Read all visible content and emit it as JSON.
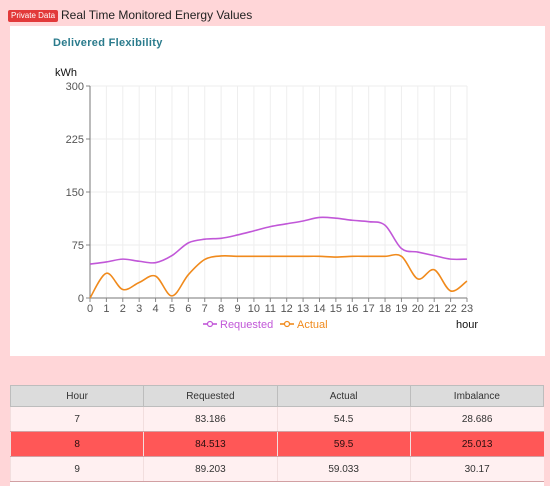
{
  "header": {
    "badge": "Private Data",
    "title": "Real Time Monitored Energy Values"
  },
  "chart_data": {
    "type": "line",
    "title": "Delivered Flexibility",
    "ylabel": "kWh",
    "xlabel": "hour",
    "ylim": [
      0,
      300
    ],
    "yticks": [
      0,
      75,
      150,
      225,
      300
    ],
    "x": [
      0,
      1,
      2,
      3,
      4,
      5,
      6,
      7,
      8,
      9,
      10,
      11,
      12,
      13,
      14,
      15,
      16,
      17,
      18,
      19,
      20,
      21,
      22,
      23
    ],
    "series": [
      {
        "name": "Requested",
        "color": "#c157d8",
        "values": [
          48,
          51,
          55,
          52,
          50,
          60,
          78,
          83.186,
          84.513,
          89.203,
          95,
          101,
          105,
          109,
          114,
          113,
          110,
          108,
          103,
          70,
          65,
          60,
          55,
          55
        ]
      },
      {
        "name": "Actual",
        "color": "#f08a1c",
        "values": [
          0,
          35,
          12,
          22,
          31,
          3,
          33,
          54.5,
          59.5,
          59.033,
          59,
          59,
          59,
          59,
          59,
          58,
          59,
          59,
          59,
          59,
          27,
          40,
          10,
          24
        ]
      }
    ],
    "legend_position": "bottom"
  },
  "table": {
    "columns": [
      "Hour",
      "Requested",
      "Actual",
      "Imbalance"
    ],
    "rows": [
      {
        "cells": [
          "7",
          "83.186",
          "54.5",
          "28.686"
        ],
        "highlight": false
      },
      {
        "cells": [
          "8",
          "84.513",
          "59.5",
          "25.013"
        ],
        "highlight": true
      },
      {
        "cells": [
          "9",
          "89.203",
          "59.033",
          "30.17"
        ],
        "highlight": false
      }
    ]
  }
}
